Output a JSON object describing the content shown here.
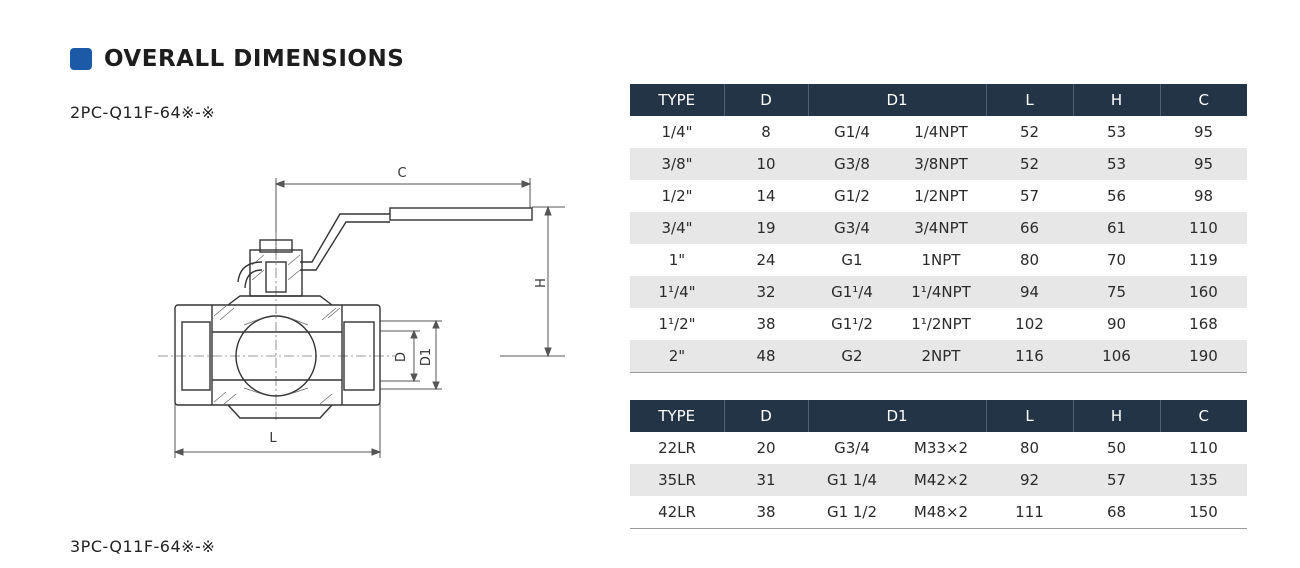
{
  "section": {
    "title": "OVERALL DIMENSIONS",
    "model_2pc": "2PC-Q11F-64※-※",
    "model_3pc": "3PC-Q11F-64※-※"
  },
  "drawing": {
    "labels": {
      "c": "C",
      "h": "H",
      "l": "L",
      "d": "D",
      "d1": "D1"
    }
  },
  "table1": {
    "headers": [
      "TYPE",
      "D",
      "D1",
      "L",
      "H",
      "C"
    ],
    "rows": [
      [
        "1/4\"",
        "8",
        "G1/4",
        "1/4NPT",
        "52",
        "53",
        "95"
      ],
      [
        "3/8\"",
        "10",
        "G3/8",
        "3/8NPT",
        "52",
        "53",
        "95"
      ],
      [
        "1/2\"",
        "14",
        "G1/2",
        "1/2NPT",
        "57",
        "56",
        "98"
      ],
      [
        "3/4\"",
        "19",
        "G3/4",
        "3/4NPT",
        "66",
        "61",
        "110"
      ],
      [
        "1\"",
        "24",
        "G1",
        "1NPT",
        "80",
        "70",
        "119"
      ],
      [
        "1¹/4\"",
        "32",
        "G1¹/4",
        "1¹/4NPT",
        "94",
        "75",
        "160"
      ],
      [
        "1¹/2\"",
        "38",
        "G1¹/2",
        "1¹/2NPT",
        "102",
        "90",
        "168"
      ],
      [
        "2\"",
        "48",
        "G2",
        "2NPT",
        "116",
        "106",
        "190"
      ]
    ]
  },
  "table2": {
    "headers": [
      "TYPE",
      "D",
      "D1",
      "L",
      "H",
      "C"
    ],
    "rows": [
      [
        "22LR",
        "20",
        "G3/4",
        "M33×2",
        "80",
        "50",
        "110"
      ],
      [
        "35LR",
        "31",
        "G1 1/4",
        "M42×2",
        "92",
        "57",
        "135"
      ],
      [
        "42LR",
        "38",
        "G1 1/2",
        "M48×2",
        "111",
        "68",
        "150"
      ]
    ]
  }
}
